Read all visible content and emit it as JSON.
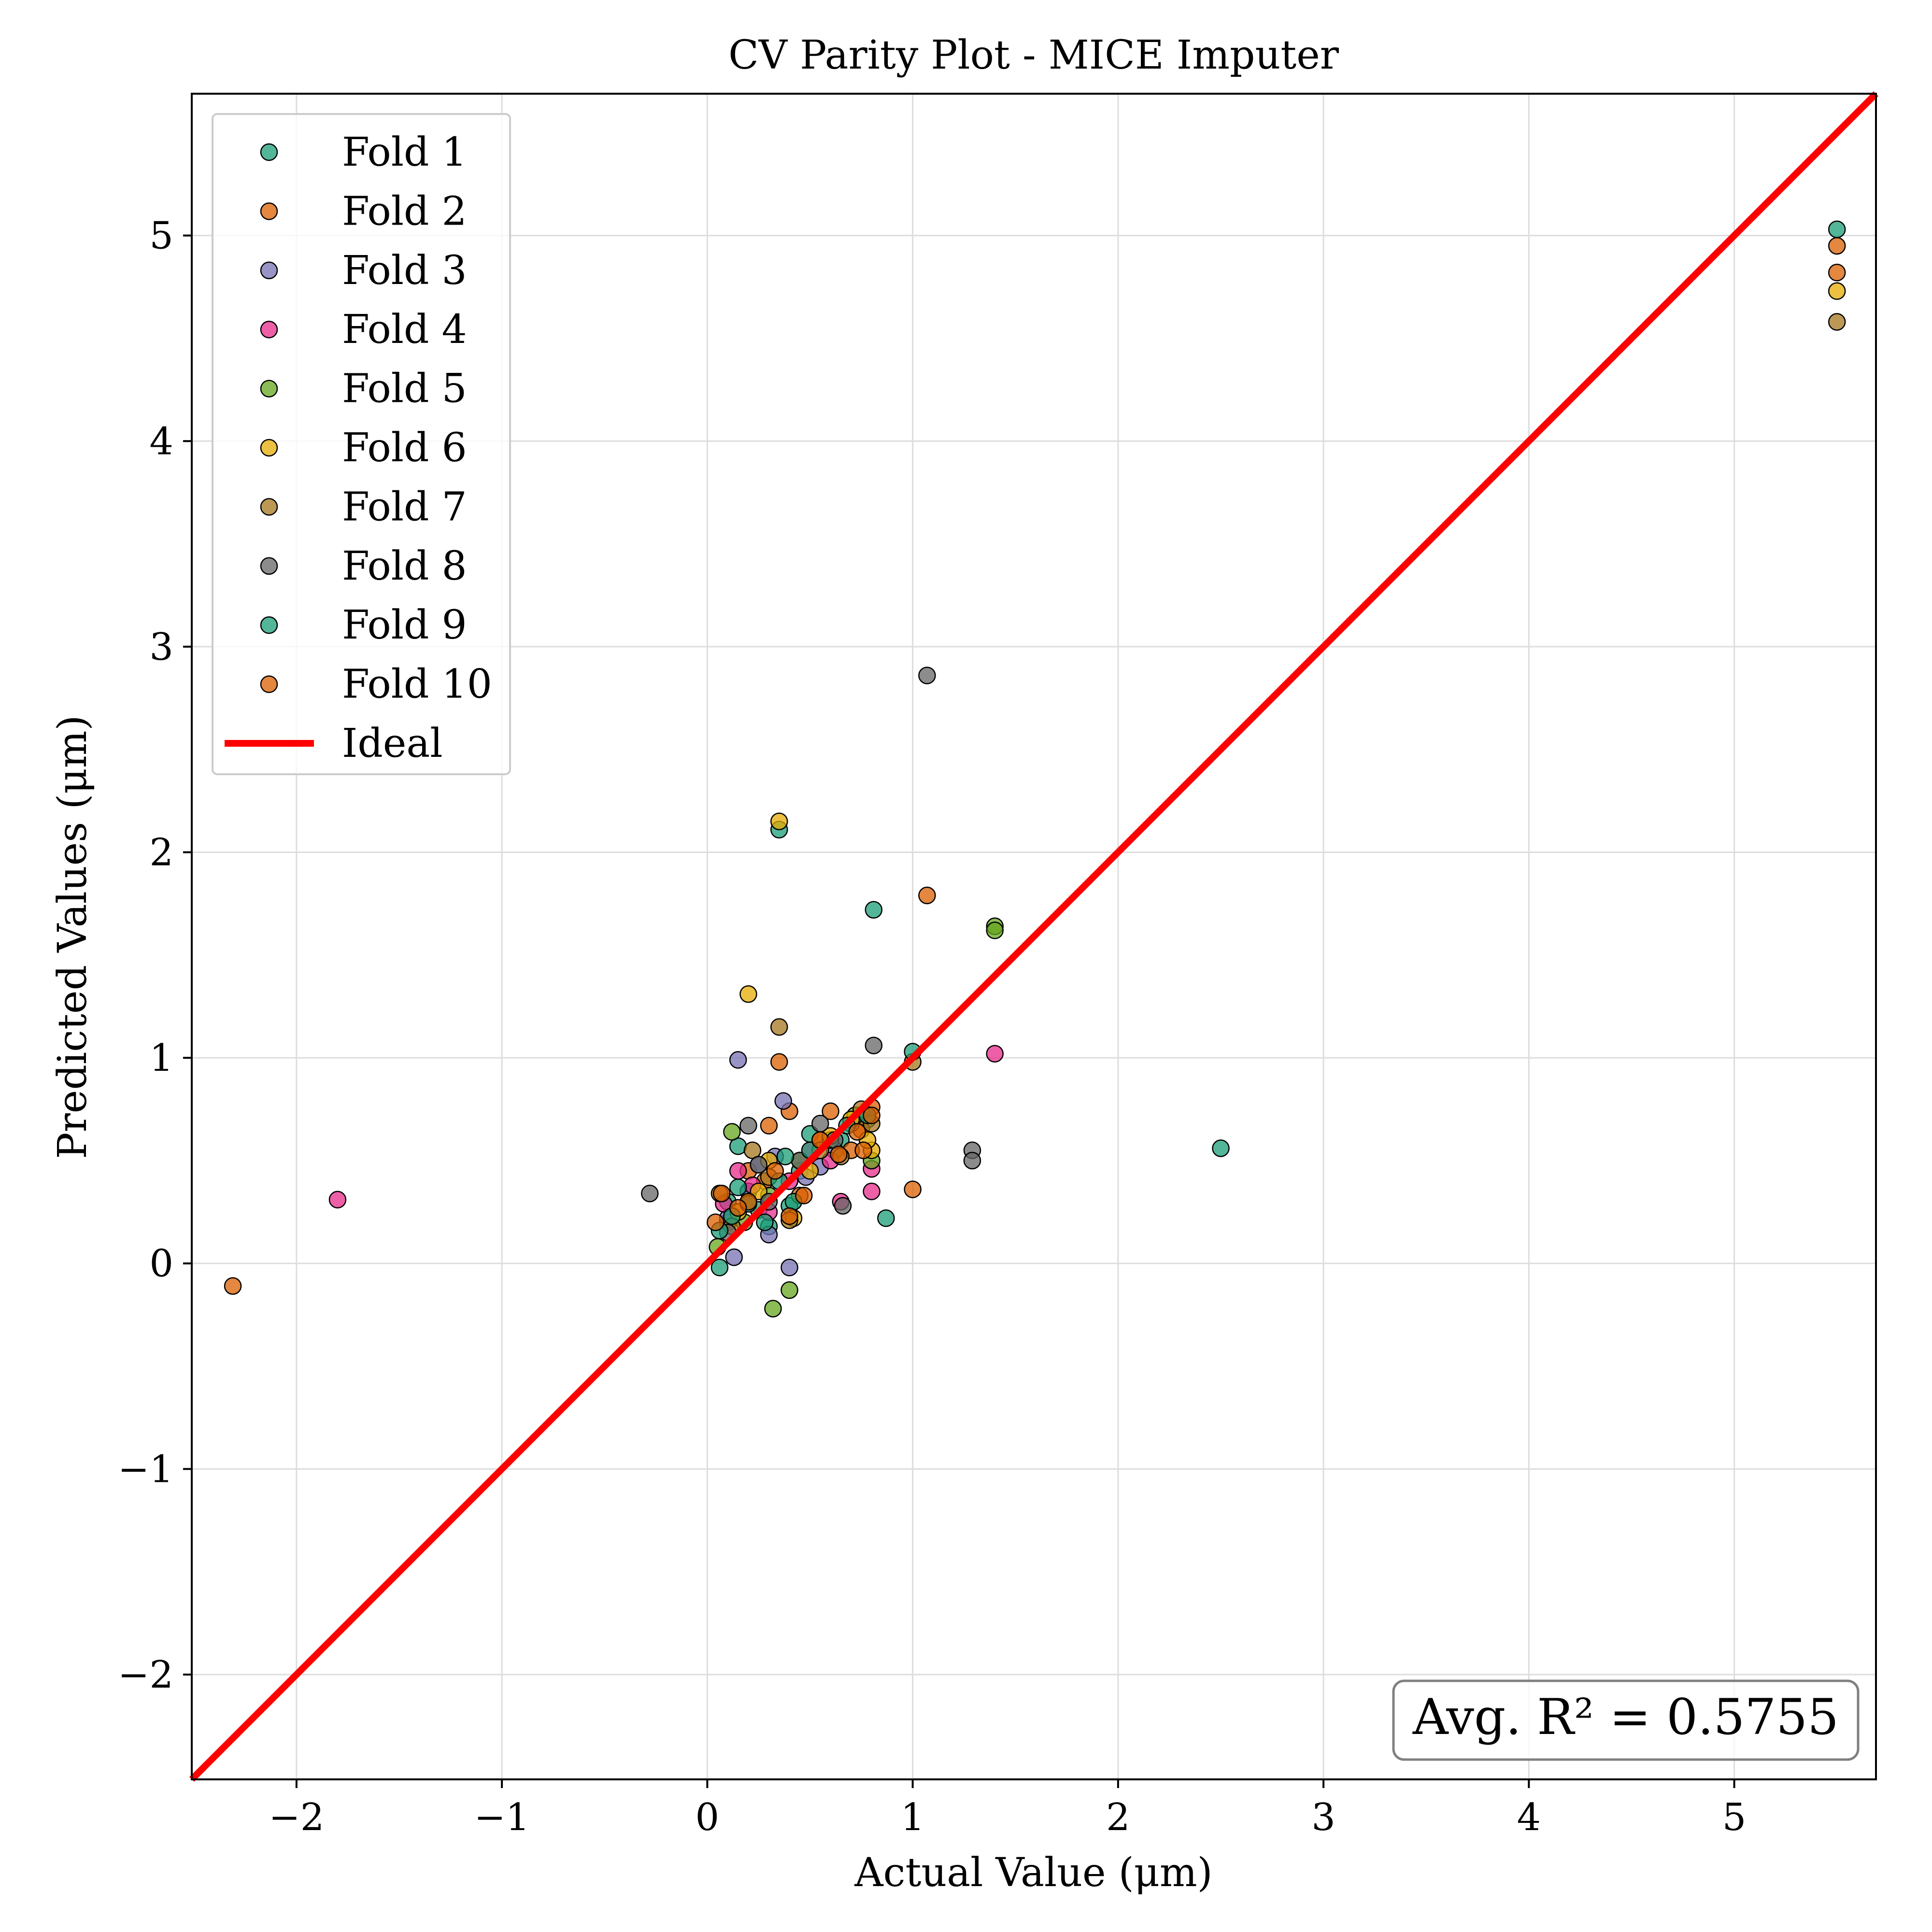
{
  "chart_data": {
    "type": "scatter",
    "title": "CV Parity Plot - MICE Imputer",
    "xlabel": "Actual Value (μm)",
    "ylabel": "Predicted Values (μm)",
    "xlim": [
      -2.51,
      5.69
    ],
    "ylim": [
      -2.51,
      5.69
    ],
    "xticks": [
      -2,
      -1,
      0,
      1,
      2,
      3,
      4,
      5
    ],
    "yticks": [
      -2,
      -1,
      0,
      1,
      2,
      3,
      4,
      5
    ],
    "xtick_labels": [
      "−2",
      "−1",
      "0",
      "1",
      "2",
      "3",
      "4",
      "5"
    ],
    "ytick_labels": [
      "−2",
      "−1",
      "0",
      "1",
      "2",
      "3",
      "4",
      "5"
    ],
    "grid": true,
    "legend_position": "top-left",
    "annotation": "Avg. R² = 0.5755",
    "ideal_line": {
      "name": "Ideal",
      "color": "#ff0000",
      "from": [
        -2.51,
        -2.51
      ],
      "to": [
        5.69,
        5.69
      ]
    },
    "series": [
      {
        "name": "Fold 1",
        "color": "#1b9e77",
        "points": [
          [
            5.5,
            5.03
          ],
          [
            0.35,
            2.11
          ],
          [
            0.81,
            1.72
          ],
          [
            2.5,
            0.56
          ],
          [
            0.87,
            0.22
          ],
          [
            0.06,
            -0.02
          ],
          [
            0.15,
            0.57
          ],
          [
            0.2,
            0.35
          ],
          [
            0.5,
            0.63
          ],
          [
            0.1,
            0.3
          ],
          [
            0.3,
            0.18
          ],
          [
            0.4,
            0.28
          ],
          [
            0.65,
            0.6
          ],
          [
            0.78,
            0.7
          ],
          [
            0.25,
            0.26
          ],
          [
            0.45,
            0.45
          ]
        ]
      },
      {
        "name": "Fold 2",
        "color": "#d95f02",
        "points": [
          [
            5.5,
            4.95
          ],
          [
            -2.31,
            -0.11
          ],
          [
            1.07,
            1.79
          ],
          [
            1.0,
            0.36
          ],
          [
            0.35,
            0.98
          ],
          [
            0.3,
            0.67
          ],
          [
            0.4,
            0.74
          ],
          [
            0.6,
            0.74
          ],
          [
            0.7,
            0.55
          ],
          [
            0.75,
            0.65
          ],
          [
            0.2,
            0.45
          ],
          [
            0.45,
            0.33
          ],
          [
            0.1,
            0.2
          ],
          [
            0.55,
            0.6
          ],
          [
            0.8,
            0.76
          ],
          [
            0.28,
            0.4
          ]
        ]
      },
      {
        "name": "Fold 3",
        "color": "#7570b3",
        "points": [
          [
            0.15,
            0.99
          ],
          [
            0.37,
            0.79
          ],
          [
            0.13,
            0.03
          ],
          [
            0.4,
            -0.02
          ],
          [
            0.55,
            0.47
          ],
          [
            0.2,
            0.35
          ],
          [
            0.3,
            0.14
          ],
          [
            0.33,
            0.52
          ],
          [
            0.48,
            0.42
          ],
          [
            0.62,
            0.55
          ],
          [
            0.1,
            0.22
          ],
          [
            0.25,
            0.48
          ],
          [
            0.7,
            0.68
          ]
        ]
      },
      {
        "name": "Fold 4",
        "color": "#e7298a",
        "points": [
          [
            -1.8,
            0.31
          ],
          [
            1.4,
            1.02
          ],
          [
            0.8,
            0.35
          ],
          [
            0.8,
            0.46
          ],
          [
            0.65,
            0.3
          ],
          [
            0.15,
            0.45
          ],
          [
            0.08,
            0.29
          ],
          [
            0.3,
            0.25
          ],
          [
            0.5,
            0.55
          ],
          [
            0.22,
            0.38
          ],
          [
            0.6,
            0.5
          ],
          [
            0.4,
            0.4
          ]
        ]
      },
      {
        "name": "Fold 5",
        "color": "#66a61e",
        "points": [
          [
            1.4,
            1.64
          ],
          [
            1.4,
            1.62
          ],
          [
            0.32,
            -0.22
          ],
          [
            0.4,
            -0.13
          ],
          [
            0.12,
            0.64
          ],
          [
            0.2,
            0.3
          ],
          [
            0.8,
            0.5
          ],
          [
            0.45,
            0.5
          ],
          [
            0.05,
            0.08
          ],
          [
            0.6,
            0.6
          ],
          [
            0.3,
            0.33
          ],
          [
            0.72,
            0.72
          ],
          [
            0.18,
            0.2
          ]
        ]
      },
      {
        "name": "Fold 6",
        "color": "#e6ab02",
        "points": [
          [
            5.5,
            4.73
          ],
          [
            0.35,
            2.15
          ],
          [
            0.2,
            1.31
          ],
          [
            0.8,
            0.55
          ],
          [
            0.3,
            0.5
          ],
          [
            0.42,
            0.22
          ],
          [
            0.6,
            0.62
          ],
          [
            0.15,
            0.25
          ],
          [
            0.5,
            0.45
          ],
          [
            0.7,
            0.7
          ],
          [
            0.25,
            0.35
          ],
          [
            0.78,
            0.6
          ]
        ]
      },
      {
        "name": "Fold 7",
        "color": "#a6761d",
        "points": [
          [
            5.5,
            4.58
          ],
          [
            0.35,
            1.15
          ],
          [
            1.0,
            0.98
          ],
          [
            0.22,
            0.55
          ],
          [
            0.06,
            0.34
          ],
          [
            0.4,
            0.21
          ],
          [
            0.55,
            0.55
          ],
          [
            0.65,
            0.52
          ],
          [
            0.75,
            0.75
          ],
          [
            0.3,
            0.42
          ],
          [
            0.12,
            0.18
          ],
          [
            0.8,
            0.68
          ]
        ]
      },
      {
        "name": "Fold 8",
        "color": "#666666",
        "points": [
          [
            1.07,
            2.86
          ],
          [
            0.81,
            1.06
          ],
          [
            1.29,
            0.55
          ],
          [
            1.29,
            0.5
          ],
          [
            -0.28,
            0.34
          ],
          [
            0.66,
            0.28
          ],
          [
            0.2,
            0.67
          ],
          [
            0.55,
            0.68
          ],
          [
            0.3,
            0.3
          ],
          [
            0.45,
            0.5
          ],
          [
            0.1,
            0.15
          ],
          [
            0.62,
            0.6
          ],
          [
            0.25,
            0.48
          ]
        ]
      },
      {
        "name": "Fold 9",
        "color": "#1b9e77",
        "points": [
          [
            1.0,
            1.03
          ],
          [
            0.06,
            0.16
          ],
          [
            0.15,
            0.37
          ],
          [
            0.2,
            0.29
          ],
          [
            0.35,
            0.4
          ],
          [
            0.38,
            0.52
          ],
          [
            0.5,
            0.55
          ],
          [
            0.68,
            0.67
          ],
          [
            0.78,
            0.72
          ],
          [
            0.12,
            0.23
          ],
          [
            0.28,
            0.2
          ],
          [
            0.42,
            0.3
          ]
        ]
      },
      {
        "name": "Fold 10",
        "color": "#d95f02",
        "points": [
          [
            5.5,
            4.82
          ],
          [
            0.04,
            0.2
          ],
          [
            0.07,
            0.34
          ],
          [
            0.33,
            0.45
          ],
          [
            0.47,
            0.33
          ],
          [
            0.64,
            0.53
          ],
          [
            0.73,
            0.64
          ],
          [
            0.76,
            0.55
          ],
          [
            0.8,
            0.72
          ],
          [
            0.4,
            0.23
          ],
          [
            0.2,
            0.3
          ],
          [
            0.55,
            0.6
          ],
          [
            0.15,
            0.27
          ]
        ]
      }
    ]
  }
}
